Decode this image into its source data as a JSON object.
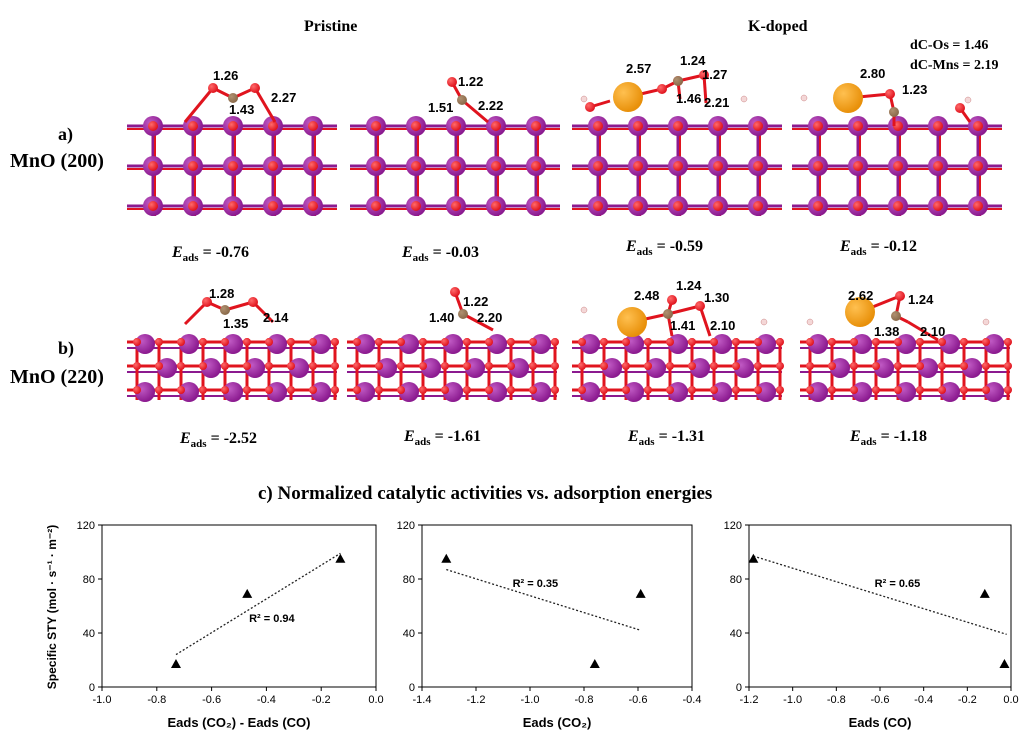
{
  "header": {
    "pristine": "Pristine",
    "kdoped": "K-doped"
  },
  "notes": {
    "dcos": "dC-Os = 1.46",
    "dcmns": "dC-Mns = 2.19"
  },
  "rows": [
    {
      "letter": "a)",
      "name": "MnO (200)"
    },
    {
      "letter": "b)",
      "name": "MnO (220)"
    }
  ],
  "panels": [
    {
      "eads": "= -0.76",
      "labels": [
        "1.26",
        "1.43",
        "2.27"
      ]
    },
    {
      "eads": "= -0.03",
      "labels": [
        "1.22",
        "1.51",
        "2.22"
      ]
    },
    {
      "eads": "= -0.59",
      "labels": [
        "2.57",
        "1.24",
        "1.27",
        "1.46",
        "2.21"
      ]
    },
    {
      "eads": "= -0.12",
      "labels": [
        "2.80",
        "1.23"
      ]
    },
    {
      "eads": "= -2.52",
      "labels": [
        "1.28",
        "1.35",
        "2.14"
      ]
    },
    {
      "eads": "= -1.61",
      "labels": [
        "1.22",
        "1.40",
        "2.20"
      ]
    },
    {
      "eads": "= -1.31",
      "labels": [
        "2.48",
        "1.24",
        "1.30",
        "1.41",
        "2.10"
      ]
    },
    {
      "eads": "= -1.18",
      "labels": [
        "2.62",
        "1.24",
        "1.38",
        "2.10"
      ]
    }
  ],
  "eads_symbol": "E",
  "eads_sub": "ads",
  "section_c_title": "c) Normalized catalytic activities vs. adsorption energies",
  "colors": {
    "mn": "#8b1a8f",
    "o": "#e0141e",
    "c": "#8a6a4a",
    "k": "#e8900a",
    "h": "#f4d7d7"
  },
  "chart_data": [
    {
      "type": "scatter",
      "ylabel": "Specific STY  (mol · s⁻¹ · m⁻²)",
      "xlabel": "Eads (CO₂) - Eads (CO)",
      "xlim": [
        -1.0,
        0.0
      ],
      "ylim": [
        0,
        120
      ],
      "xticks": [
        "-1.0",
        "-0.8",
        "-0.6",
        "-0.4",
        "-0.2",
        "0.0"
      ],
      "yticks": [
        "0",
        "40",
        "80",
        "120"
      ],
      "points": [
        {
          "x": -0.73,
          "y": 17
        },
        {
          "x": -0.47,
          "y": 69
        },
        {
          "x": -0.13,
          "y": 95
        }
      ],
      "trendline": [
        [
          -0.73,
          24
        ],
        [
          -0.13,
          99
        ]
      ],
      "annotation": "R² = 0.94"
    },
    {
      "type": "scatter",
      "xlabel": "Eads (CO₂)",
      "xlim": [
        -1.4,
        -0.4
      ],
      "ylim": [
        0,
        120
      ],
      "xticks": [
        "-1.4",
        "-1.2",
        "-1.0",
        "-0.8",
        "-0.6",
        "-0.4"
      ],
      "yticks": [
        "0",
        "40",
        "80",
        "120"
      ],
      "points": [
        {
          "x": -1.31,
          "y": 95
        },
        {
          "x": -0.76,
          "y": 17
        },
        {
          "x": -0.59,
          "y": 69
        }
      ],
      "trendline": [
        [
          -1.31,
          87
        ],
        [
          -0.59,
          42
        ]
      ],
      "annotation": "R² = 0.35"
    },
    {
      "type": "scatter",
      "xlabel": "Eads (CO)",
      "xlim": [
        -1.2,
        0.0
      ],
      "ylim": [
        0,
        120
      ],
      "xticks": [
        "-1.2",
        "-1.0",
        "-0.8",
        "-0.6",
        "-0.4",
        "-0.2",
        "0.0"
      ],
      "yticks": [
        "0",
        "40",
        "80",
        "120"
      ],
      "points": [
        {
          "x": -1.18,
          "y": 95
        },
        {
          "x": -0.12,
          "y": 69
        },
        {
          "x": -0.03,
          "y": 17
        }
      ],
      "trendline": [
        [
          -1.18,
          97
        ],
        [
          -0.02,
          39
        ]
      ],
      "annotation": "R² = 0.65"
    }
  ]
}
